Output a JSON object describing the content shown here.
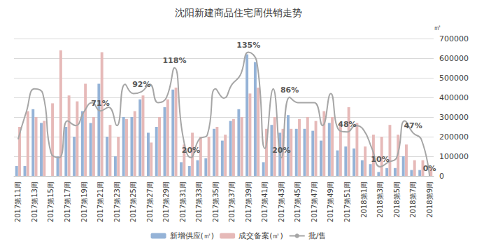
{
  "chart_data": {
    "type": "bar",
    "title": "沈阳新建商品住宅周供销走势",
    "y_label": "㎡",
    "categories": [
      "2017第11周",
      null,
      "2017第13周",
      null,
      "2017第15周",
      null,
      "2017第17周",
      null,
      "2017第19周",
      null,
      "2017第21周",
      null,
      "2017第23周",
      null,
      "2017第25周",
      null,
      "2017第27周",
      null,
      "2017第29周",
      null,
      "2017第31周",
      null,
      "2017第33周",
      null,
      "2017第35周",
      null,
      "2017第37周",
      null,
      "2017第39周",
      null,
      "2017第41周",
      null,
      "2017第43周",
      null,
      "2017第45周",
      null,
      "2017第47周",
      null,
      "2017第49周",
      null,
      "2017第51周",
      null,
      "2018第1周",
      null,
      "2018第3周",
      null,
      "2018第5周",
      null,
      "2018第7周",
      null,
      "2018第9周"
    ],
    "series": [
      {
        "name": "新增供应(㎡)",
        "type": "bar",
        "color": "#95b3d7",
        "values": [
          50000,
          50000,
          340000,
          270000,
          0,
          100000,
          250000,
          200000,
          330000,
          270000,
          470000,
          200000,
          100000,
          300000,
          300000,
          390000,
          220000,
          250000,
          350000,
          440000,
          70000,
          50000,
          80000,
          90000,
          240000,
          180000,
          280000,
          340000,
          620000,
          580000,
          70000,
          260000,
          220000,
          310000,
          240000,
          240000,
          230000,
          180000,
          270000,
          130000,
          150000,
          140000,
          80000,
          60000,
          20000,
          40000,
          40000,
          100000,
          30000,
          30000,
          0
        ]
      },
      {
        "name": "成交备案(㎡)",
        "type": "bar",
        "color": "#e6b9b8",
        "values": [
          250000,
          330000,
          300000,
          280000,
          370000,
          640000,
          410000,
          380000,
          470000,
          300000,
          630000,
          260000,
          200000,
          290000,
          330000,
          410000,
          170000,
          300000,
          390000,
          450000,
          160000,
          220000,
          200000,
          200000,
          250000,
          210000,
          290000,
          300000,
          420000,
          450000,
          240000,
          300000,
          240000,
          240000,
          290000,
          300000,
          280000,
          330000,
          300000,
          270000,
          350000,
          270000,
          150000,
          210000,
          200000,
          260000,
          210000,
          160000,
          80000,
          80000,
          40000
        ]
      },
      {
        "name": "批/售",
        "type": "line",
        "color": "#a6a6a6",
        "axis": "y2",
        "line_style": "solid",
        "marker": "none",
        "values": [
          40,
          70,
          95,
          90,
          25,
          20,
          60,
          55,
          70,
          80,
          71,
          75,
          55,
          100,
          90,
          92,
          100,
          80,
          85,
          118,
          45,
          20,
          40,
          45,
          95,
          85,
          100,
          110,
          135,
          125,
          30,
          95,
          20,
          86,
          80,
          80,
          80,
          55,
          90,
          50,
          48,
          55,
          50,
          30,
          10,
          15,
          20,
          60,
          47,
          40,
          0
        ],
        "value_labels": [
          null,
          null,
          null,
          null,
          null,
          null,
          null,
          null,
          null,
          null,
          "71%",
          null,
          null,
          null,
          null,
          "92%",
          null,
          null,
          null,
          "118%",
          null,
          "20%",
          null,
          null,
          null,
          null,
          null,
          null,
          "135%",
          null,
          null,
          null,
          "20%",
          "86%",
          null,
          null,
          null,
          null,
          null,
          null,
          "48%",
          null,
          null,
          null,
          "10%",
          null,
          null,
          null,
          "47%",
          null,
          "0%"
        ]
      }
    ],
    "ylim": [
      0,
      700000
    ],
    "yticks": [
      0,
      100000,
      200000,
      300000,
      400000,
      500000,
      600000,
      700000
    ],
    "y2lim": [
      0,
      150
    ],
    "grid": true,
    "legend": "bottom",
    "data_labels": true
  }
}
